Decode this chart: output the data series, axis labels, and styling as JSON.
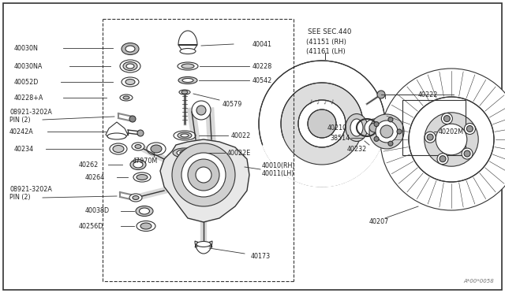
{
  "bg_color": "#ffffff",
  "line_color": "#333333",
  "text_color": "#222222",
  "watermark": "A*00*0058",
  "see_sec": [
    "SEE SEC.440",
    "(41151 (RH)",
    "(41161 (LH)"
  ]
}
